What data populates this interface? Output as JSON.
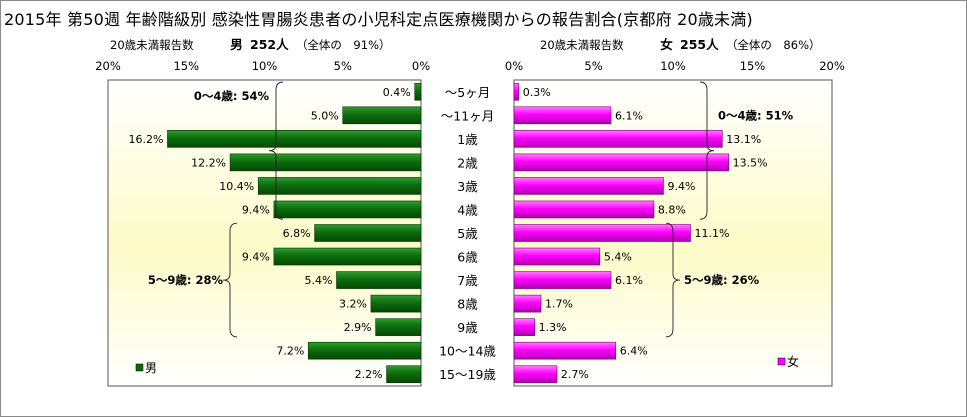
{
  "title": "2015年 第50週 年齢階級別 感染性胃腸炎患者の小児科定点医療機関からの報告割合(京都府 20歳未満)",
  "left_header": {
    "caption": "20歳未満報告数",
    "sex": "男",
    "count": "252人",
    "note": "（全体の　91%）"
  },
  "right_header": {
    "caption": "20歳未満報告数",
    "sex": "女",
    "count": "255人",
    "note": "（全体の　86%）"
  },
  "chart_data": [
    {
      "type": "bar",
      "orientation": "horizontal",
      "direction": "right-to-left",
      "categories": [
        "～5ヶ月",
        "～11ヶ月",
        "1歳",
        "2歳",
        "3歳",
        "4歳",
        "5歳",
        "6歳",
        "7歳",
        "8歳",
        "9歳",
        "10～14歳",
        "15～19歳"
      ],
      "series": [
        {
          "name": "男",
          "values": [
            0.4,
            5.0,
            16.2,
            12.2,
            10.4,
            9.4,
            6.8,
            9.4,
            5.4,
            3.2,
            2.9,
            7.2,
            2.2
          ]
        }
      ],
      "value_labels": [
        "0.4%",
        "5.0%",
        "16.2%",
        "12.2%",
        "10.4%",
        "9.4%",
        "6.8%",
        "9.4%",
        "5.4%",
        "3.2%",
        "2.9%",
        "7.2%",
        "2.2%"
      ],
      "xlim": [
        0,
        20
      ],
      "ticks": [
        "20%",
        "15%",
        "10%",
        "5%",
        "0%"
      ],
      "legend": "bottom-left",
      "color": "#0b6b0b",
      "annotations": [
        {
          "text": "0～4歳: 54%",
          "span": [
            "～5ヶ月",
            "4歳"
          ]
        },
        {
          "text": "5～9歳: 28%",
          "span": [
            "5歳",
            "9歳"
          ]
        }
      ]
    },
    {
      "type": "bar",
      "orientation": "horizontal",
      "direction": "left-to-right",
      "categories": [
        "～5ヶ月",
        "～11ヶ月",
        "1歳",
        "2歳",
        "3歳",
        "4歳",
        "5歳",
        "6歳",
        "7歳",
        "8歳",
        "9歳",
        "10～14歳",
        "15～19歳"
      ],
      "series": [
        {
          "name": "女",
          "values": [
            0.3,
            6.1,
            13.1,
            13.5,
            9.4,
            8.8,
            11.1,
            5.4,
            6.1,
            1.7,
            1.3,
            6.4,
            2.7
          ]
        }
      ],
      "value_labels": [
        "0.3%",
        "6.1%",
        "13.1%",
        "13.5%",
        "9.4%",
        "8.8%",
        "11.1%",
        "5.4%",
        "6.1%",
        "1.7%",
        "1.3%",
        "6.4%",
        "2.7%"
      ],
      "xlim": [
        0,
        20
      ],
      "ticks": [
        "0%",
        "5%",
        "10%",
        "15%",
        "20%"
      ],
      "legend": "bottom-right",
      "color": "#ff00ff",
      "annotations": [
        {
          "text": "0～4歳: 51%",
          "span": [
            "～5ヶ月",
            "4歳"
          ]
        },
        {
          "text": "5～9歳: 26%",
          "span": [
            "5歳",
            "9歳"
          ]
        }
      ]
    }
  ]
}
